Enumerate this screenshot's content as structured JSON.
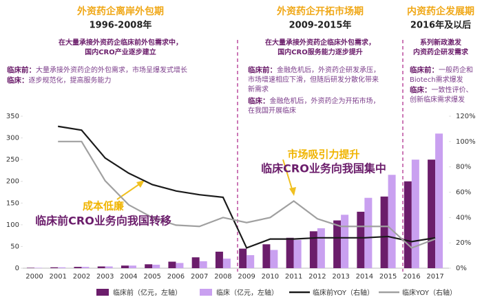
{
  "chart_data": {
    "type": "bar",
    "categories": [
      "2000",
      "2001",
      "2002",
      "2003",
      "2004",
      "2005",
      "2006",
      "2007",
      "2008",
      "2009",
      "2010",
      "2011",
      "2012",
      "2013",
      "2014",
      "2015",
      "2016",
      "2017"
    ],
    "series": [
      {
        "name": "临床前（亿元，左轴）",
        "color": "#6b1d6b",
        "values": [
          1,
          2,
          3,
          4,
          6,
          9,
          15,
          25,
          38,
          45,
          55,
          70,
          85,
          110,
          130,
          165,
          200,
          250
        ]
      },
      {
        "name": "临床（亿元，左轴）",
        "color": "#c9a0f0",
        "values": [
          1,
          2,
          3,
          4,
          6,
          8,
          12,
          16,
          22,
          30,
          42,
          65,
          92,
          123,
          162,
          215,
          250,
          310
        ]
      },
      {
        "name": "临床前YOY（右轴）",
        "type": "line",
        "axis": "y2",
        "color": "#1a1a1a",
        "values": [
          null,
          112,
          109,
          87,
          75,
          66,
          61,
          58,
          56,
          16,
          23,
          23,
          24,
          24,
          24,
          25,
          21,
          24
        ]
      },
      {
        "name": "临床YOY（右轴）",
        "type": "line",
        "axis": "y2",
        "color": "#a0a0a0",
        "values": [
          null,
          100,
          100,
          69,
          50,
          40,
          34,
          33,
          40,
          36,
          40,
          53,
          39,
          33,
          33,
          33,
          16,
          23
        ]
      }
    ],
    "ylim": [
      0,
      350
    ],
    "yticks": [
      0,
      50,
      100,
      150,
      200,
      250,
      300,
      350
    ],
    "y2lim": [
      0,
      120
    ],
    "y2ticks": [
      {
        "value": 0,
        "label": "0%"
      },
      {
        "value": 20,
        "label": "20%"
      },
      {
        "value": 40,
        "label": "40%"
      },
      {
        "value": 60,
        "label": "60%"
      },
      {
        "value": 80,
        "label": "80%"
      },
      {
        "value": 100,
        "label": "100%"
      },
      {
        "value": 120,
        "label": "120%"
      }
    ],
    "periods": [
      {
        "title": "外资药企离岸外包期",
        "years": "1996-2008年",
        "summary": [
          "在大量承接外资药企临床前外包需求中，",
          "国内CRO产业逐步建立"
        ],
        "notes": [
          {
            "label": "临床前：",
            "lines": [
              "大量承接外资药企的外包需求，市场呈爆发式增长"
            ]
          },
          {
            "label": "临床：",
            "lines": [
              "逐步规范化，提高服务能力"
            ]
          }
        ]
      },
      {
        "title": "外资药企开拓市场期",
        "years": "2009-2015年",
        "summary": [
          "在大量承接外资药企临床外包需求，",
          "国内CRO服务能力逐步提升"
        ],
        "notes": [
          {
            "label": "临床前：",
            "lines": [
              "金融危机后，外资药企研发承压，",
              "市场增速相应下滑，但随后研发分散化带来",
              "新需求"
            ]
          },
          {
            "label": "临床：",
            "lines": [
              "金融危机后，外资药企为开拓市场，",
              "在我国开展临床"
            ]
          }
        ]
      },
      {
        "title": "内资药企发展期",
        "years": "2016年及以后",
        "summary": [
          "系列新政激发",
          "内资药企研发需求"
        ],
        "notes": [
          {
            "label": "临床前：",
            "lines": [
              "一般药企和",
              "Biotech需求爆发"
            ]
          },
          {
            "label": "临床：",
            "lines": [
              "一致性评价、",
              "创新临床需求爆发"
            ]
          }
        ]
      }
    ],
    "callouts": [
      {
        "headline": "成本低廉",
        "text": "临床前CRO业务向我国转移"
      },
      {
        "headline": "市场吸引力提升",
        "text": "临床CRO业务向我国集中"
      }
    ]
  }
}
